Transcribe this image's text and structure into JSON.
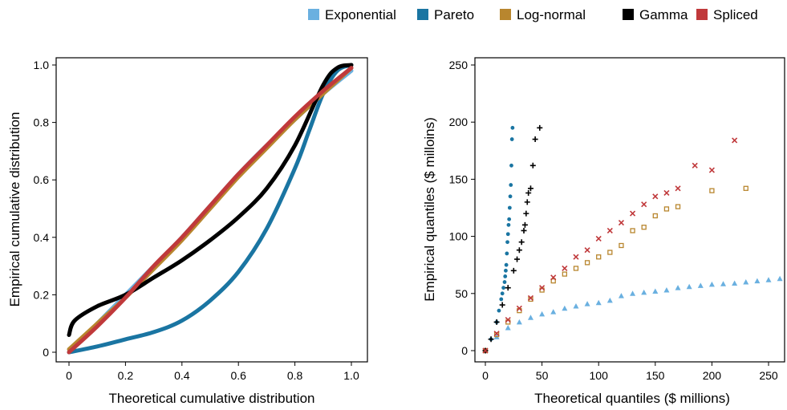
{
  "legend": [
    {
      "label": "Exponential",
      "color": "#6ab0e0"
    },
    {
      "label": "Pareto",
      "color": "#1a75a2"
    },
    {
      "label": "Log-normal",
      "color": "#b8862e"
    },
    {
      "label": "Gamma",
      "color": "#000000"
    },
    {
      "label": "Spliced",
      "color": "#c0393b"
    }
  ],
  "chart_data": [
    {
      "type": "line",
      "xlabel": "Theoretical cumulative distribution",
      "ylabel": "Empirical cumulative distribution",
      "xlim": [
        0,
        1
      ],
      "ylim": [
        0,
        1
      ],
      "xticks": [
        "0",
        "0.2",
        "0.4",
        "0.6",
        "0.8",
        "1.0"
      ],
      "yticks": [
        "0",
        "0.2",
        "0.4",
        "0.6",
        "0.8",
        "1.0"
      ],
      "series": [
        {
          "name": "Exponential",
          "color": "#6ab0e0",
          "x": [
            0,
            0.1,
            0.2,
            0.3,
            0.4,
            0.5,
            0.6,
            0.7,
            0.8,
            0.9,
            1.0
          ],
          "y": [
            0,
            0.1,
            0.2,
            0.3,
            0.4,
            0.51,
            0.62,
            0.72,
            0.81,
            0.9,
            0.98
          ]
        },
        {
          "name": "Pareto",
          "color": "#1a75a2",
          "x": [
            0,
            0.1,
            0.2,
            0.3,
            0.4,
            0.5,
            0.6,
            0.7,
            0.8,
            0.85,
            0.9,
            0.95,
            1.0
          ],
          "y": [
            0,
            0.02,
            0.045,
            0.07,
            0.11,
            0.18,
            0.28,
            0.43,
            0.64,
            0.77,
            0.9,
            0.98,
            1.0
          ]
        },
        {
          "name": "Log-normal",
          "color": "#b8862e",
          "x": [
            0,
            0.1,
            0.2,
            0.3,
            0.4,
            0.5,
            0.6,
            0.7,
            0.8,
            0.9,
            1.0
          ],
          "y": [
            0.01,
            0.1,
            0.19,
            0.29,
            0.39,
            0.5,
            0.61,
            0.71,
            0.81,
            0.9,
            0.99
          ]
        },
        {
          "name": "Gamma",
          "color": "#000000",
          "x": [
            0,
            0.02,
            0.1,
            0.2,
            0.3,
            0.4,
            0.5,
            0.6,
            0.7,
            0.8,
            0.9,
            0.95,
            1.0
          ],
          "y": [
            0.06,
            0.11,
            0.16,
            0.2,
            0.26,
            0.32,
            0.39,
            0.47,
            0.57,
            0.72,
            0.93,
            0.99,
            1.0
          ]
        },
        {
          "name": "Spliced",
          "color": "#c0393b",
          "x": [
            0,
            0.1,
            0.2,
            0.3,
            0.4,
            0.5,
            0.6,
            0.7,
            0.8,
            0.9,
            1.0
          ],
          "y": [
            0,
            0.09,
            0.19,
            0.3,
            0.4,
            0.51,
            0.62,
            0.72,
            0.82,
            0.91,
            0.99
          ]
        }
      ]
    },
    {
      "type": "scatter",
      "xlabel": "Theoretical quantiles ($ millions)",
      "ylabel": "Empirical quantiles ($ milloins)",
      "xlim": [
        -5,
        260
      ],
      "ylim": [
        -5,
        260
      ],
      "xticks": [
        "0",
        "50",
        "100",
        "150",
        "200",
        "250"
      ],
      "yticks": [
        "0",
        "50",
        "100",
        "150",
        "200",
        "250"
      ],
      "series": [
        {
          "name": "Exponential",
          "color": "#6ab0e0",
          "marker": "triangle",
          "x": [
            0,
            10,
            20,
            30,
            40,
            50,
            60,
            70,
            80,
            90,
            100,
            110,
            120,
            130,
            140,
            150,
            160,
            170,
            180,
            190,
            200,
            210,
            220,
            230,
            240,
            250,
            260
          ],
          "y": [
            0,
            12,
            20,
            25,
            29,
            32,
            34,
            37,
            39,
            41,
            42,
            44,
            48,
            50,
            51,
            52,
            53,
            55,
            56,
            57,
            58,
            58.5,
            59,
            60,
            61,
            62,
            63
          ]
        },
        {
          "name": "Pareto",
          "color": "#1a75a2",
          "marker": "circle",
          "x": [
            0,
            5,
            10,
            12,
            14,
            15,
            16,
            17,
            17.5,
            18,
            18.5,
            19,
            19.5,
            20,
            20.5,
            21,
            21.5,
            22,
            22.5,
            23,
            23.5,
            24
          ],
          "y": [
            0,
            10,
            25,
            35,
            45,
            50,
            55,
            60,
            65,
            70,
            75,
            85,
            95,
            102,
            110,
            115,
            125,
            135,
            145,
            162,
            185,
            195
          ]
        },
        {
          "name": "Log-normal",
          "color": "#b8862e",
          "marker": "square",
          "x": [
            0,
            10,
            20,
            30,
            40,
            50,
            60,
            70,
            80,
            90,
            100,
            110,
            120,
            130,
            140,
            150,
            160,
            170,
            200,
            230
          ],
          "y": [
            0,
            14,
            25,
            35,
            45,
            53,
            61,
            67,
            72,
            77,
            82,
            86,
            92,
            105,
            108,
            118,
            124,
            126,
            140,
            142
          ]
        },
        {
          "name": "Gamma",
          "color": "#000000",
          "marker": "plus",
          "x": [
            0,
            5,
            10,
            15,
            20,
            25,
            28,
            30,
            32,
            34,
            35,
            36,
            37,
            38,
            40,
            42,
            44,
            48
          ],
          "y": [
            0,
            10,
            25,
            40,
            55,
            70,
            80,
            88,
            95,
            105,
            110,
            120,
            130,
            138,
            142,
            162,
            185,
            195
          ]
        },
        {
          "name": "Spliced",
          "color": "#c0393b",
          "marker": "cross",
          "x": [
            0,
            10,
            20,
            30,
            40,
            50,
            60,
            70,
            80,
            90,
            100,
            110,
            120,
            130,
            140,
            150,
            160,
            170,
            185,
            200,
            220
          ],
          "y": [
            0,
            15,
            27,
            37,
            46,
            55,
            64,
            72,
            82,
            88,
            98,
            105,
            112,
            120,
            128,
            135,
            138,
            142,
            162,
            158,
            184
          ]
        }
      ]
    }
  ]
}
